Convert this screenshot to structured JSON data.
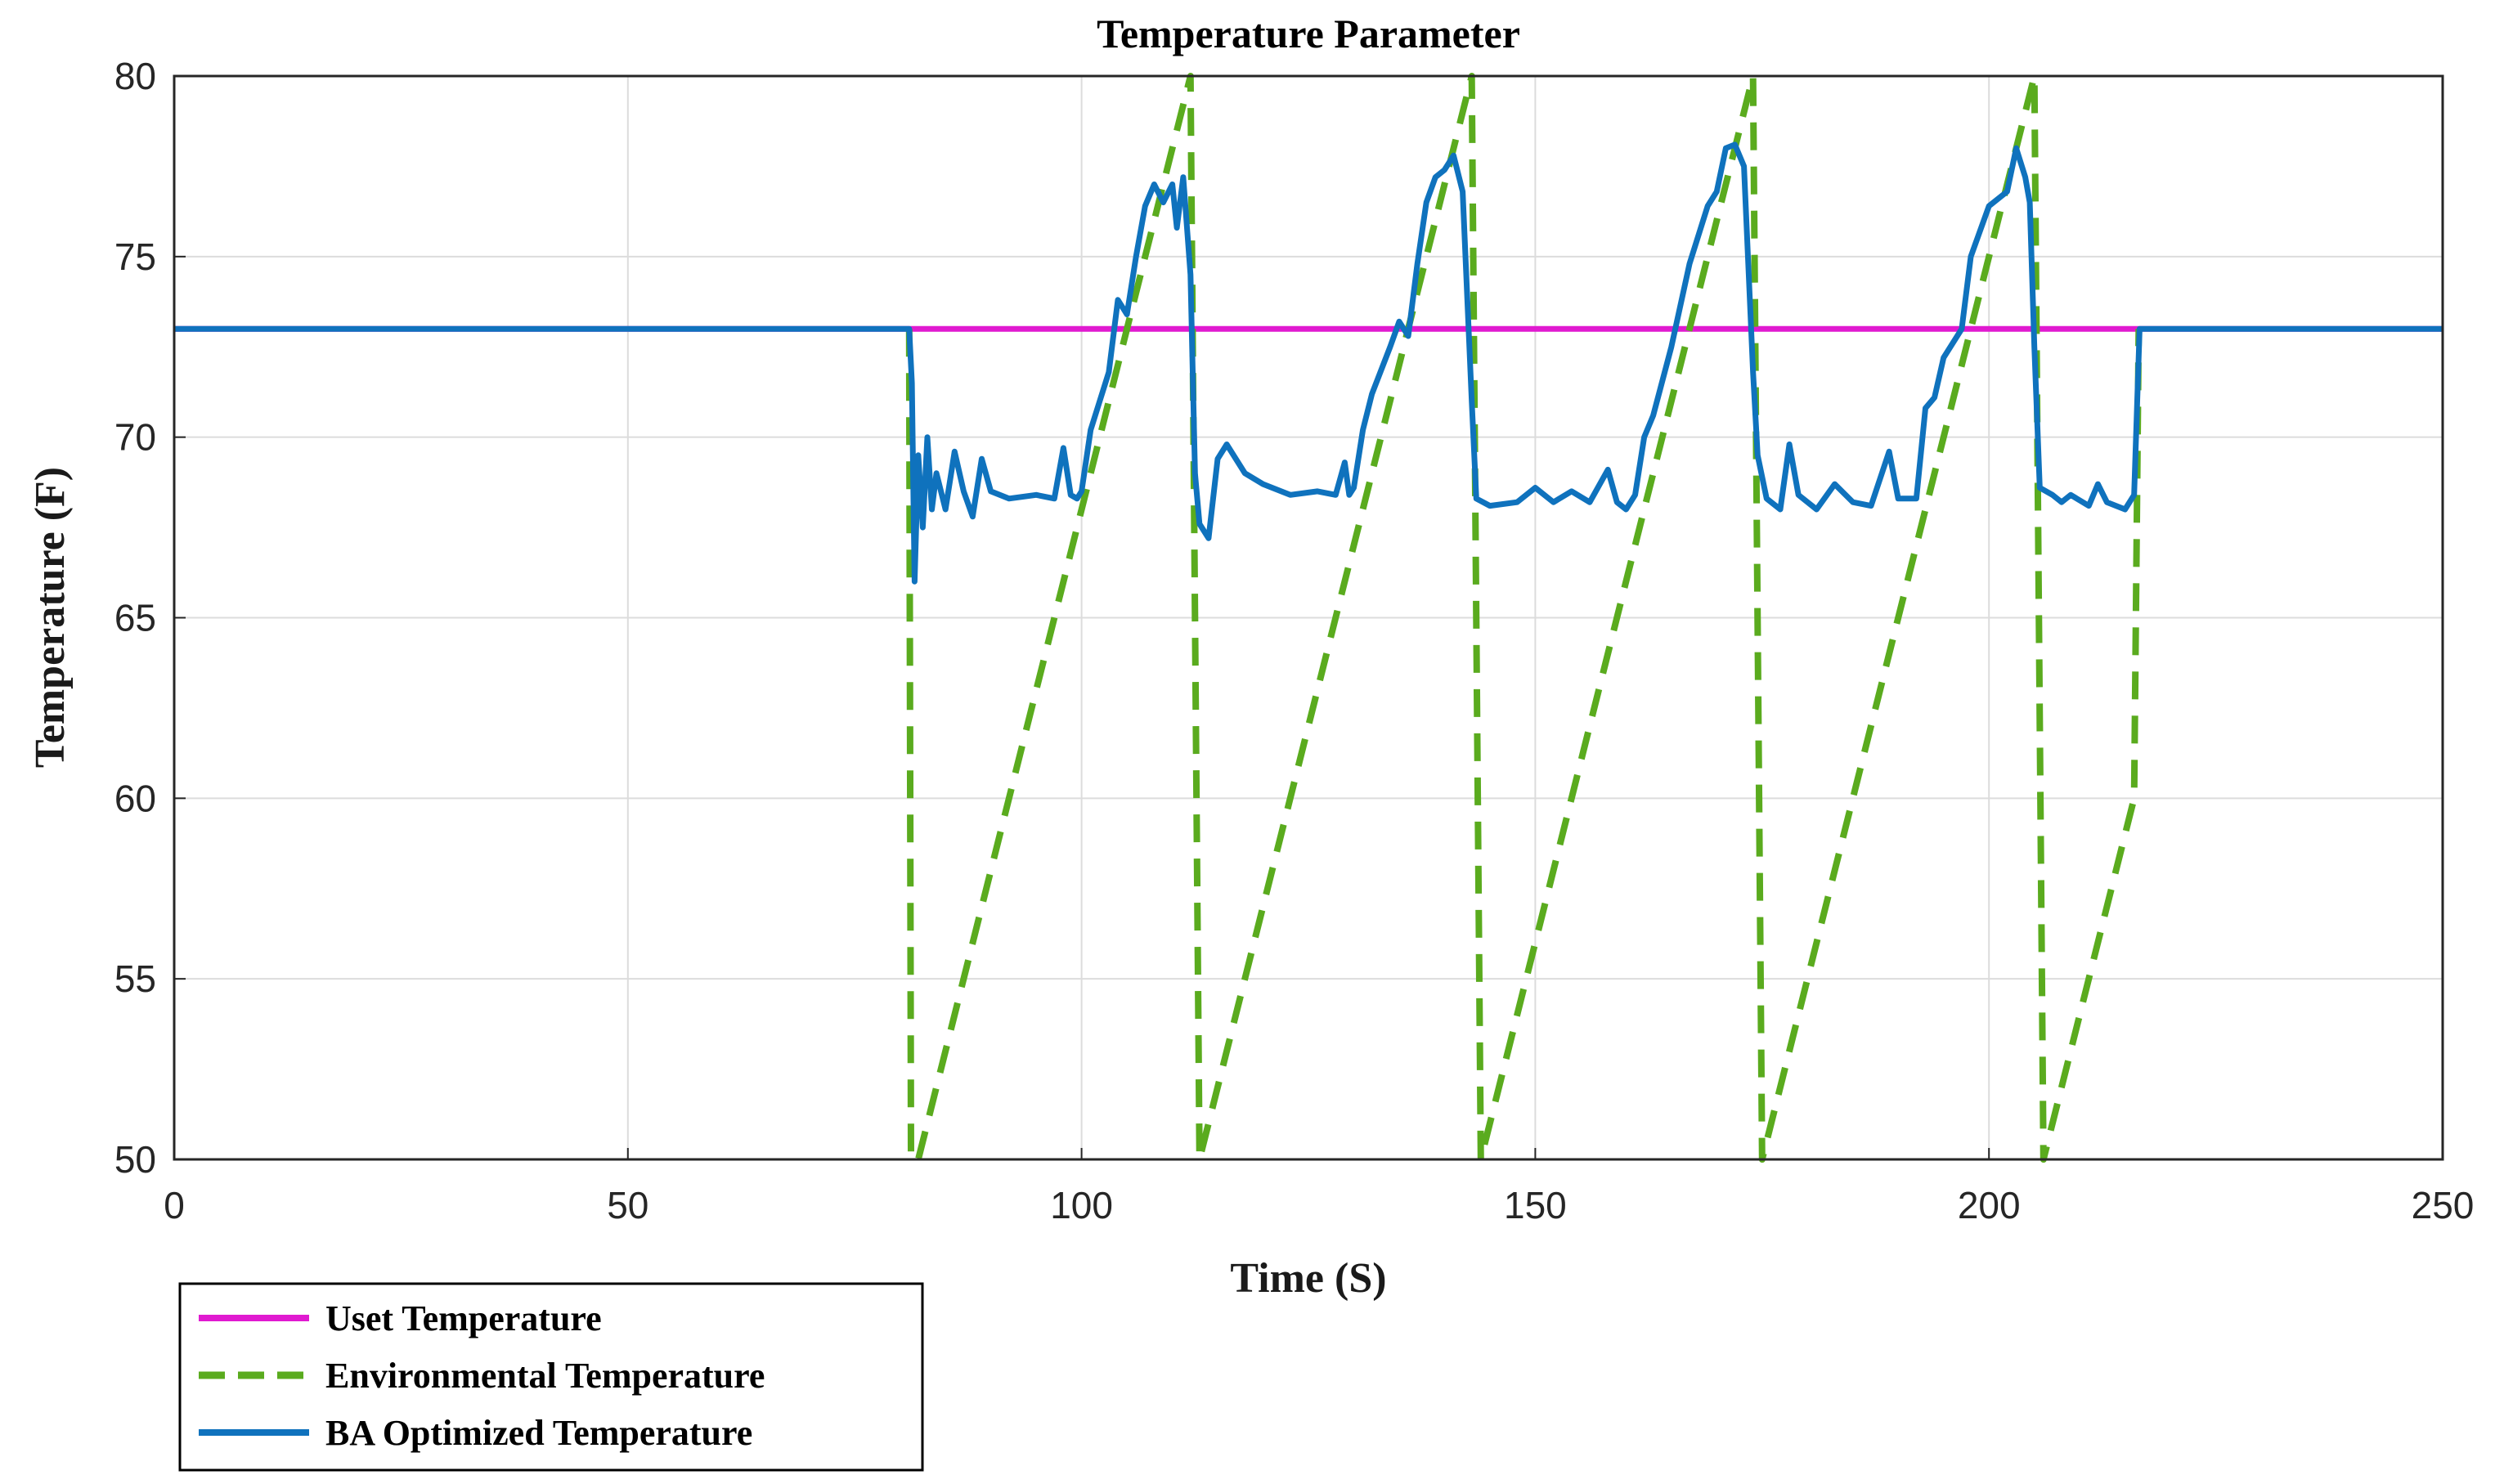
{
  "chart_data": {
    "type": "line",
    "title": "Temperature Parameter",
    "xlabel": "Time (S)",
    "ylabel": "Temperature (F)",
    "xlim": [
      0,
      250
    ],
    "ylim": [
      50,
      80
    ],
    "xticks": [
      0,
      50,
      100,
      150,
      200,
      250
    ],
    "yticks": [
      50,
      55,
      60,
      65,
      70,
      75,
      80
    ],
    "grid": true,
    "legend_position": "bottom-left outside",
    "series": [
      {
        "name": "Uset Temperature",
        "color": "#e01ad0",
        "style": "solid",
        "points": [
          [
            0,
            73
          ],
          [
            250,
            73
          ]
        ]
      },
      {
        "name": "Environmental Temperature",
        "color": "#5aab1e",
        "style": "dashed",
        "points": [
          [
            81,
            73
          ],
          [
            81.2,
            50
          ],
          [
            82,
            50
          ],
          [
            112,
            80
          ],
          [
            113,
            50
          ],
          [
            143,
            80
          ],
          [
            144,
            50
          ],
          [
            174,
            80
          ],
          [
            175,
            50
          ],
          [
            205,
            80
          ],
          [
            206,
            50
          ],
          [
            216,
            60
          ],
          [
            216.5,
            73
          ]
        ]
      },
      {
        "name": "BA Optimized Temperature",
        "color": "#0f72bd",
        "style": "solid",
        "points": [
          [
            0,
            73
          ],
          [
            81,
            73
          ],
          [
            81.3,
            71.5
          ],
          [
            81.6,
            66
          ],
          [
            82,
            69.5
          ],
          [
            82.5,
            67.5
          ],
          [
            83,
            70
          ],
          [
            83.5,
            68
          ],
          [
            84,
            69
          ],
          [
            85,
            68
          ],
          [
            86,
            69.6
          ],
          [
            87,
            68.5
          ],
          [
            88,
            67.8
          ],
          [
            89,
            69.4
          ],
          [
            90,
            68.5
          ],
          [
            92,
            68.3
          ],
          [
            95,
            68.4
          ],
          [
            97,
            68.3
          ],
          [
            98,
            69.7
          ],
          [
            98.8,
            68.4
          ],
          [
            99.5,
            68.3
          ],
          [
            100,
            68.5
          ],
          [
            101,
            70.2
          ],
          [
            102,
            71
          ],
          [
            103,
            71.8
          ],
          [
            104,
            73.8
          ],
          [
            105,
            73.4
          ],
          [
            106,
            75
          ],
          [
            107,
            76.4
          ],
          [
            108,
            77
          ],
          [
            109,
            76.5
          ],
          [
            110,
            77
          ],
          [
            110.5,
            75.8
          ],
          [
            111.2,
            77.2
          ],
          [
            112,
            74.5
          ],
          [
            112.5,
            69
          ],
          [
            113,
            67.6
          ],
          [
            114,
            67.2
          ],
          [
            115,
            69.4
          ],
          [
            116,
            69.8
          ],
          [
            118,
            69
          ],
          [
            120,
            68.7
          ],
          [
            123,
            68.4
          ],
          [
            126,
            68.5
          ],
          [
            128,
            68.4
          ],
          [
            129,
            69.3
          ],
          [
            129.5,
            68.4
          ],
          [
            130,
            68.6
          ],
          [
            131,
            70.2
          ],
          [
            132,
            71.2
          ],
          [
            134,
            72.5
          ],
          [
            135,
            73.2
          ],
          [
            136,
            72.8
          ],
          [
            137,
            74.8
          ],
          [
            138,
            76.5
          ],
          [
            139,
            77.2
          ],
          [
            140,
            77.4
          ],
          [
            141,
            77.8
          ],
          [
            142,
            76.8
          ],
          [
            143,
            71
          ],
          [
            143.5,
            68.3
          ],
          [
            145,
            68.1
          ],
          [
            148,
            68.2
          ],
          [
            150,
            68.6
          ],
          [
            152,
            68.2
          ],
          [
            154,
            68.5
          ],
          [
            156,
            68.2
          ],
          [
            158,
            69.1
          ],
          [
            159,
            68.2
          ],
          [
            160,
            68
          ],
          [
            161,
            68.4
          ],
          [
            162,
            70
          ],
          [
            163,
            70.6
          ],
          [
            165,
            72.5
          ],
          [
            167,
            74.8
          ],
          [
            169,
            76.4
          ],
          [
            170,
            76.8
          ],
          [
            171,
            78
          ],
          [
            172,
            78.1
          ],
          [
            173,
            77.5
          ],
          [
            174,
            71.8
          ],
          [
            174.5,
            69.5
          ],
          [
            175.5,
            68.3
          ],
          [
            177,
            68
          ],
          [
            178,
            69.8
          ],
          [
            179,
            68.4
          ],
          [
            181,
            68
          ],
          [
            183,
            68.7
          ],
          [
            185,
            68.2
          ],
          [
            187,
            68.1
          ],
          [
            189,
            69.6
          ],
          [
            190,
            68.3
          ],
          [
            192,
            68.3
          ],
          [
            193,
            70.8
          ],
          [
            194,
            71.1
          ],
          [
            195,
            72.2
          ],
          [
            197,
            73
          ],
          [
            198,
            75
          ],
          [
            200,
            76.4
          ],
          [
            202,
            76.8
          ],
          [
            203,
            78
          ],
          [
            204,
            77.2
          ],
          [
            204.5,
            76.5
          ],
          [
            205,
            72.5
          ],
          [
            205.6,
            68.6
          ],
          [
            207,
            68.4
          ],
          [
            208,
            68.2
          ],
          [
            209,
            68.4
          ],
          [
            211,
            68.1
          ],
          [
            212,
            68.7
          ],
          [
            213,
            68.2
          ],
          [
            215,
            68
          ],
          [
            216,
            68.4
          ],
          [
            216.6,
            73
          ],
          [
            250,
            73
          ]
        ]
      }
    ]
  }
}
